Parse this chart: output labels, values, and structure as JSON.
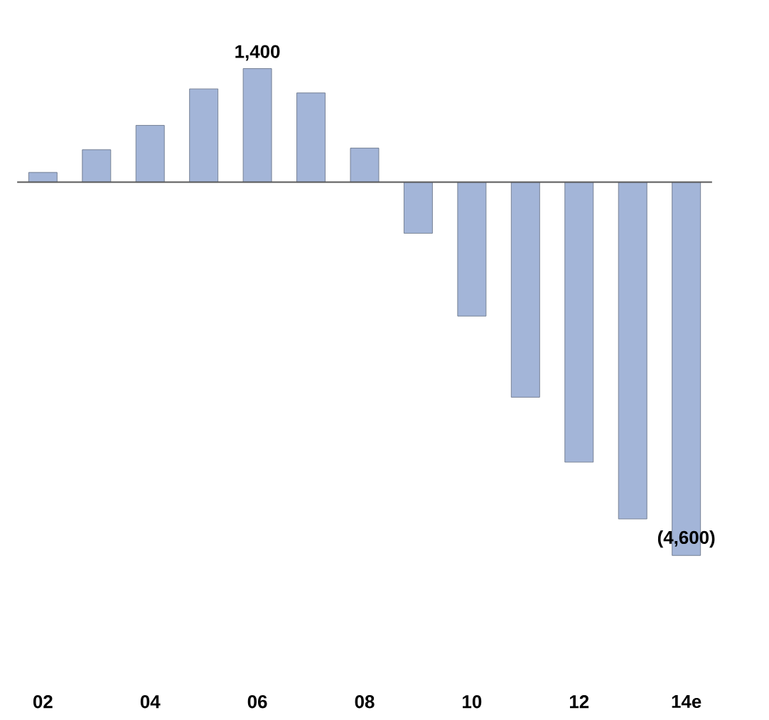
{
  "chart_data": {
    "type": "bar",
    "categories": [
      "02",
      null,
      "04",
      null,
      "06",
      null,
      "08",
      null,
      "10",
      null,
      "12",
      null,
      "14e"
    ],
    "values": [
      120,
      400,
      700,
      1150,
      1400,
      1100,
      420,
      -630,
      -1650,
      -2650,
      -3450,
      -4150,
      -4600
    ],
    "value_labels": [
      null,
      null,
      null,
      null,
      "1,400",
      null,
      null,
      null,
      null,
      null,
      null,
      null,
      "(4,600)"
    ],
    "color": "#a3b5d8"
  }
}
